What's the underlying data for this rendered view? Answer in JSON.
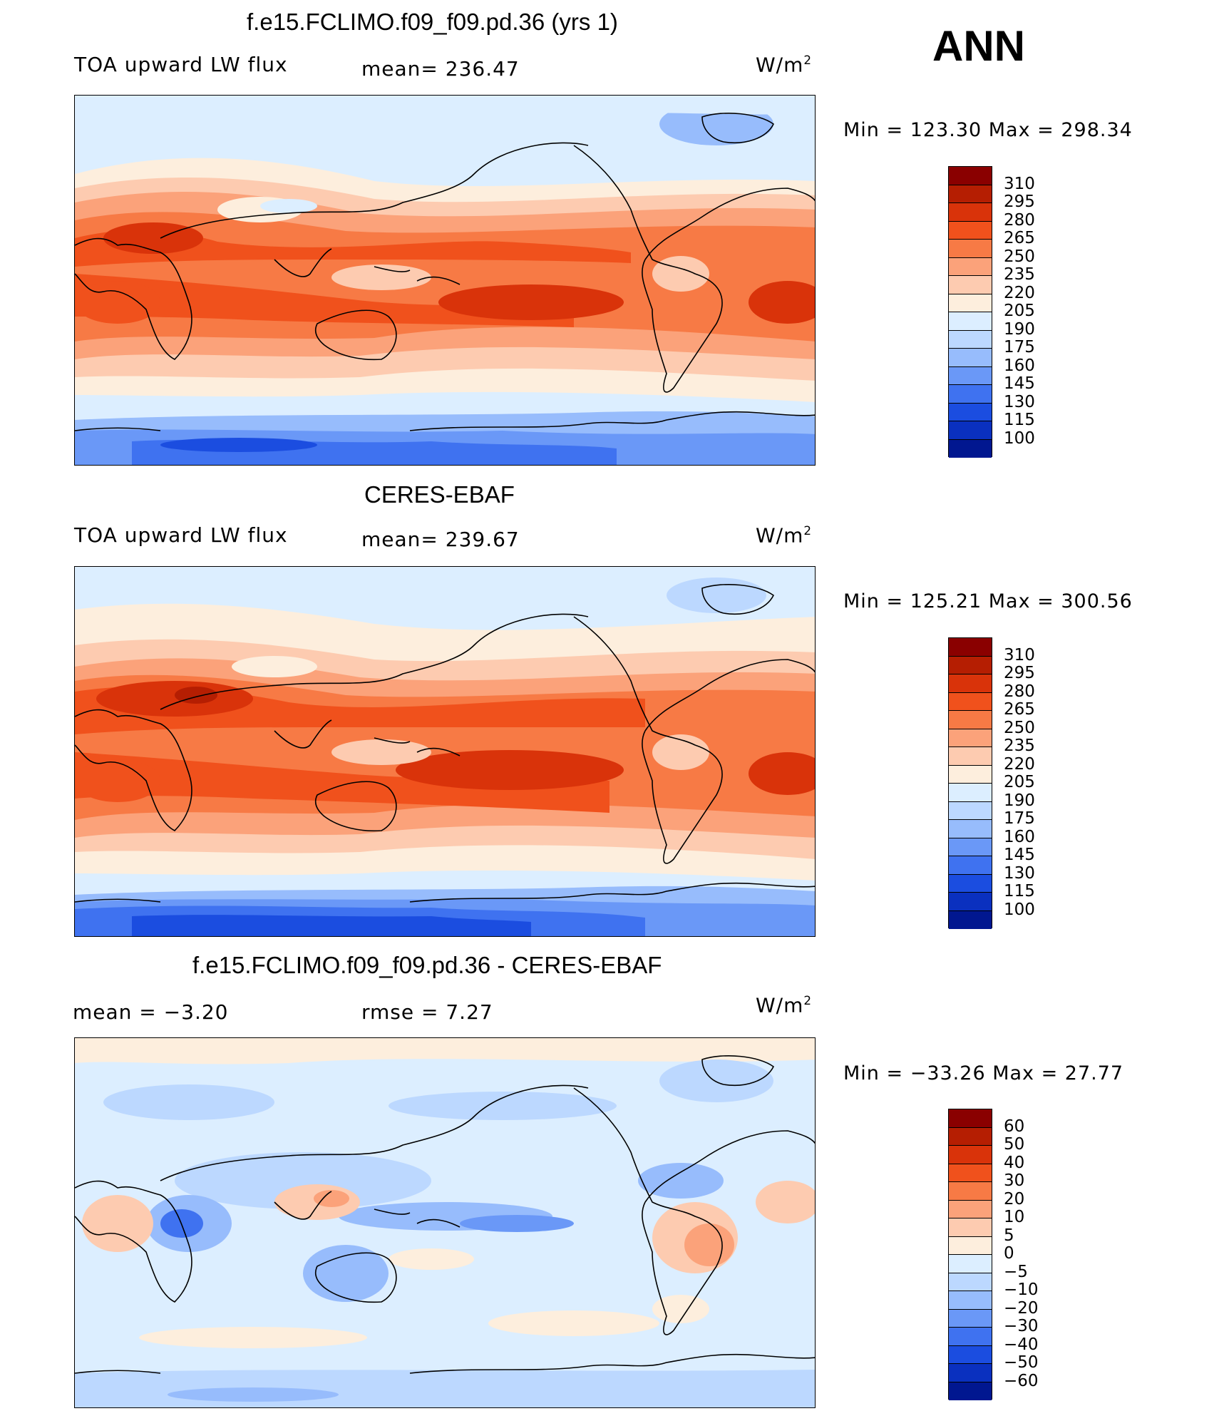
{
  "season": "ANN",
  "panels": [
    {
      "title": "f.e15.FCLIMO.f09_f09.pd.36 (yrs 1)",
      "left_label": "TOA upward LW flux",
      "center_label": "mean= 236.47",
      "units": "W/m",
      "units_exp": "2",
      "minmax": "Min  =  123.30  Max  =  298.34",
      "colorbar_labels": [
        "310",
        "295",
        "280",
        "265",
        "250",
        "235",
        "220",
        "205",
        "190",
        "175",
        "160",
        "145",
        "130",
        "115",
        "100"
      ]
    },
    {
      "title": "CERES-EBAF",
      "left_label": "TOA upward LW flux",
      "center_label": "mean= 239.67",
      "units": "W/m",
      "units_exp": "2",
      "minmax": "Min  =  125.21  Max  =  300.56",
      "colorbar_labels": [
        "310",
        "295",
        "280",
        "265",
        "250",
        "235",
        "220",
        "205",
        "190",
        "175",
        "160",
        "145",
        "130",
        "115",
        "100"
      ]
    },
    {
      "title": "f.e15.FCLIMO.f09_f09.pd.36 - CERES-EBAF",
      "left_label": "mean  =    −3.20",
      "center_label": "rmse  =     7.27",
      "units": "W/m",
      "units_exp": "2",
      "minmax": "Min  =  −33.26  Max  =    27.77",
      "colorbar_labels": [
        "60",
        "50",
        "40",
        "30",
        "20",
        "10",
        "5",
        "0",
        "−5",
        "−10",
        "−20",
        "−30",
        "−40",
        "−50",
        "−60"
      ]
    }
  ],
  "colors": {
    "abs_scale": [
      "#8a0000",
      "#b51e02",
      "#d9330a",
      "#f0511c",
      "#f77a45",
      "#fba27a",
      "#fdcbb0",
      "#fdeedd",
      "#dceeff",
      "#bcd8ff",
      "#97bcfc",
      "#6a98f7",
      "#3f72f0",
      "#1b4de0",
      "#0a30bf",
      "#011790"
    ],
    "diff_scale": [
      "#8a0000",
      "#b51e02",
      "#d9330a",
      "#f0511c",
      "#f77a45",
      "#fba27a",
      "#fdcbb0",
      "#fdeedd",
      "#dceeff",
      "#bcd8ff",
      "#97bcfc",
      "#6a98f7",
      "#3f72f0",
      "#1b4de0",
      "#0a30bf",
      "#011790"
    ]
  }
}
